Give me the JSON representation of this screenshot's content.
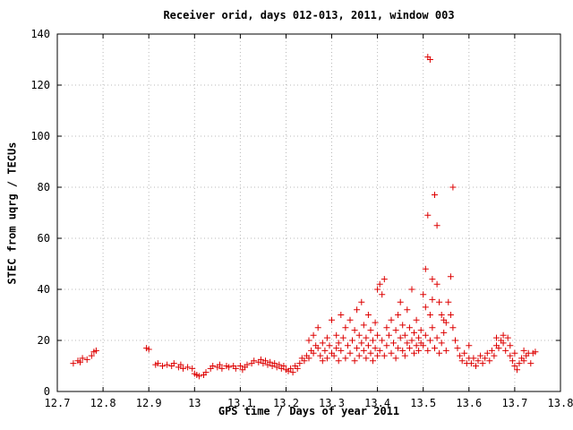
{
  "chart_data": {
    "type": "scatter",
    "title": "Receiver orid, days 012-013, 2011, window 003",
    "grid": true,
    "legend": "none",
    "colors": {
      "axis": "#000000",
      "grid": "#b8b8b8",
      "background": "#ffffff"
    },
    "x_axis": {
      "label": "GPS time / Days of year 2011",
      "min": 12.7,
      "max": 13.8,
      "ticks": [
        {
          "v": 12.7,
          "t": "12.7"
        },
        {
          "v": 12.8,
          "t": "12.8"
        },
        {
          "v": 12.9,
          "t": "12.9"
        },
        {
          "v": 13.0,
          "t": "13"
        },
        {
          "v": 13.1,
          "t": "13.1"
        },
        {
          "v": 13.2,
          "t": "13.2"
        },
        {
          "v": 13.3,
          "t": "13.3"
        },
        {
          "v": 13.4,
          "t": "13.4"
        },
        {
          "v": 13.5,
          "t": "13.5"
        },
        {
          "v": 13.6,
          "t": "13.6"
        },
        {
          "v": 13.7,
          "t": "13.7"
        },
        {
          "v": 13.8,
          "t": "13.8"
        }
      ]
    },
    "y_axis": {
      "label": "STEC from uqrg / TECUs",
      "min": 0,
      "max": 140,
      "ticks": [
        {
          "v": 0,
          "t": "0"
        },
        {
          "v": 20,
          "t": "20"
        },
        {
          "v": 40,
          "t": "40"
        },
        {
          "v": 60,
          "t": "60"
        },
        {
          "v": 80,
          "t": "80"
        },
        {
          "v": 100,
          "t": "100"
        },
        {
          "v": 120,
          "t": "120"
        },
        {
          "v": 140,
          "t": "140"
        }
      ]
    },
    "series": [
      {
        "name": "STEC",
        "marker": "plus",
        "color": "#dd0000",
        "points": [
          [
            12.735,
            11
          ],
          [
            12.745,
            12
          ],
          [
            12.75,
            11.5
          ],
          [
            12.755,
            13
          ],
          [
            12.765,
            12.5
          ],
          [
            12.775,
            14
          ],
          [
            12.78,
            15.5
          ],
          [
            12.785,
            16
          ],
          [
            12.895,
            17
          ],
          [
            12.9,
            16.5
          ],
          [
            12.915,
            10.5
          ],
          [
            12.92,
            11
          ],
          [
            12.93,
            10
          ],
          [
            12.94,
            10.5
          ],
          [
            12.95,
            10
          ],
          [
            12.955,
            11
          ],
          [
            12.965,
            9.5
          ],
          [
            12.97,
            10.5
          ],
          [
            12.975,
            9
          ],
          [
            12.985,
            9.5
          ],
          [
            12.995,
            9
          ],
          [
            13.0,
            7
          ],
          [
            13.005,
            6.5
          ],
          [
            13.01,
            6
          ],
          [
            13.02,
            6.5
          ],
          [
            13.025,
            7.5
          ],
          [
            13.035,
            9
          ],
          [
            13.04,
            10
          ],
          [
            13.05,
            9.5
          ],
          [
            13.055,
            10.5
          ],
          [
            13.06,
            9
          ],
          [
            13.07,
            10
          ],
          [
            13.075,
            9.5
          ],
          [
            13.085,
            10
          ],
          [
            13.09,
            9
          ],
          [
            13.1,
            10
          ],
          [
            13.105,
            8.5
          ],
          [
            13.11,
            9.5
          ],
          [
            13.115,
            10.5
          ],
          [
            13.125,
            11
          ],
          [
            13.13,
            12
          ],
          [
            13.14,
            11.5
          ],
          [
            13.145,
            12.5
          ],
          [
            13.15,
            11
          ],
          [
            13.155,
            12
          ],
          [
            13.16,
            10.5
          ],
          [
            13.165,
            11.5
          ],
          [
            13.17,
            10
          ],
          [
            13.175,
            11
          ],
          [
            13.18,
            9.5
          ],
          [
            13.185,
            10.5
          ],
          [
            13.19,
            9
          ],
          [
            13.195,
            10
          ],
          [
            13.2,
            8.5
          ],
          [
            13.205,
            8
          ],
          [
            13.21,
            9
          ],
          [
            13.215,
            7.5
          ],
          [
            13.22,
            10
          ],
          [
            13.225,
            9
          ],
          [
            13.23,
            11
          ],
          [
            13.235,
            13
          ],
          [
            13.24,
            12
          ],
          [
            13.245,
            14
          ],
          [
            13.25,
            13
          ],
          [
            13.25,
            20
          ],
          [
            13.255,
            16
          ],
          [
            13.26,
            15
          ],
          [
            13.26,
            22
          ],
          [
            13.265,
            18
          ],
          [
            13.27,
            17
          ],
          [
            13.27,
            25
          ],
          [
            13.275,
            14
          ],
          [
            13.28,
            12
          ],
          [
            13.28,
            19
          ],
          [
            13.285,
            16
          ],
          [
            13.29,
            13
          ],
          [
            13.29,
            21
          ],
          [
            13.295,
            18
          ],
          [
            13.3,
            15
          ],
          [
            13.3,
            28
          ],
          [
            13.305,
            14
          ],
          [
            13.31,
            17
          ],
          [
            13.31,
            22
          ],
          [
            13.315,
            12
          ],
          [
            13.315,
            19
          ],
          [
            13.32,
            16
          ],
          [
            13.32,
            30
          ],
          [
            13.325,
            21
          ],
          [
            13.33,
            13
          ],
          [
            13.33,
            25
          ],
          [
            13.335,
            18
          ],
          [
            13.34,
            15
          ],
          [
            13.34,
            28
          ],
          [
            13.345,
            20
          ],
          [
            13.35,
            12
          ],
          [
            13.35,
            24
          ],
          [
            13.355,
            17
          ],
          [
            13.355,
            32
          ],
          [
            13.36,
            14
          ],
          [
            13.36,
            22
          ],
          [
            13.365,
            19
          ],
          [
            13.365,
            35
          ],
          [
            13.37,
            16
          ],
          [
            13.37,
            26
          ],
          [
            13.375,
            13
          ],
          [
            13.375,
            21
          ],
          [
            13.38,
            18
          ],
          [
            13.38,
            30
          ],
          [
            13.385,
            15
          ],
          [
            13.385,
            24
          ],
          [
            13.39,
            12
          ],
          [
            13.39,
            20
          ],
          [
            13.395,
            17
          ],
          [
            13.395,
            27
          ],
          [
            13.4,
            14
          ],
          [
            13.4,
            22
          ],
          [
            13.4,
            40
          ],
          [
            13.405,
            42
          ],
          [
            13.41,
            38
          ],
          [
            13.415,
            44
          ],
          [
            13.405,
            16
          ],
          [
            13.41,
            20
          ],
          [
            13.415,
            14
          ],
          [
            13.42,
            18
          ],
          [
            13.42,
            25
          ],
          [
            13.425,
            22
          ],
          [
            13.43,
            15
          ],
          [
            13.43,
            28
          ],
          [
            13.435,
            19
          ],
          [
            13.44,
            13
          ],
          [
            13.44,
            24
          ],
          [
            13.445,
            17
          ],
          [
            13.445,
            30
          ],
          [
            13.45,
            21
          ],
          [
            13.45,
            35
          ],
          [
            13.455,
            16
          ],
          [
            13.455,
            26
          ],
          [
            13.46,
            14
          ],
          [
            13.46,
            22
          ],
          [
            13.465,
            19
          ],
          [
            13.465,
            32
          ],
          [
            13.47,
            17
          ],
          [
            13.47,
            25
          ],
          [
            13.475,
            20
          ],
          [
            13.475,
            40
          ],
          [
            13.48,
            15
          ],
          [
            13.48,
            23
          ],
          [
            13.485,
            18
          ],
          [
            13.485,
            28
          ],
          [
            13.49,
            16
          ],
          [
            13.49,
            21
          ],
          [
            13.495,
            19
          ],
          [
            13.495,
            24
          ],
          [
            13.51,
            131
          ],
          [
            13.515,
            130
          ],
          [
            13.525,
            77
          ],
          [
            13.51,
            69
          ],
          [
            13.53,
            65
          ],
          [
            13.505,
            48
          ],
          [
            13.52,
            44
          ],
          [
            13.5,
            38
          ],
          [
            13.505,
            33
          ],
          [
            13.515,
            30
          ],
          [
            13.52,
            36
          ],
          [
            13.53,
            42
          ],
          [
            13.535,
            35
          ],
          [
            13.54,
            30
          ],
          [
            13.545,
            28
          ],
          [
            13.5,
            18
          ],
          [
            13.505,
            22
          ],
          [
            13.51,
            16
          ],
          [
            13.515,
            20
          ],
          [
            13.52,
            25
          ],
          [
            13.525,
            17
          ],
          [
            13.53,
            21
          ],
          [
            13.535,
            15
          ],
          [
            13.54,
            19
          ],
          [
            13.545,
            23
          ],
          [
            13.55,
            16
          ],
          [
            13.55,
            27
          ],
          [
            13.565,
            80
          ],
          [
            13.56,
            45
          ],
          [
            13.555,
            35
          ],
          [
            13.56,
            30
          ],
          [
            13.565,
            25
          ],
          [
            13.57,
            20
          ],
          [
            13.575,
            17
          ],
          [
            13.58,
            14
          ],
          [
            13.585,
            12
          ],
          [
            13.59,
            15
          ],
          [
            13.595,
            11
          ],
          [
            13.6,
            13
          ],
          [
            13.6,
            18
          ],
          [
            13.605,
            11
          ],
          [
            13.61,
            13
          ],
          [
            13.615,
            10
          ],
          [
            13.62,
            12
          ],
          [
            13.625,
            14
          ],
          [
            13.63,
            11
          ],
          [
            13.635,
            13
          ],
          [
            13.64,
            15
          ],
          [
            13.645,
            12
          ],
          [
            13.65,
            16
          ],
          [
            13.655,
            14
          ],
          [
            13.66,
            18
          ],
          [
            13.66,
            21
          ],
          [
            13.665,
            17
          ],
          [
            13.67,
            20
          ],
          [
            13.675,
            19
          ],
          [
            13.675,
            22
          ],
          [
            13.68,
            16
          ],
          [
            13.685,
            21
          ],
          [
            13.69,
            14
          ],
          [
            13.69,
            18
          ],
          [
            13.695,
            12
          ],
          [
            13.7,
            10
          ],
          [
            13.7,
            15
          ],
          [
            13.705,
            8.5
          ],
          [
            13.71,
            11
          ],
          [
            13.715,
            13
          ],
          [
            13.72,
            12
          ],
          [
            13.72,
            16
          ],
          [
            13.725,
            14
          ],
          [
            13.73,
            15
          ],
          [
            13.735,
            11
          ],
          [
            13.74,
            15
          ],
          [
            13.745,
            15.5
          ]
        ]
      }
    ]
  }
}
